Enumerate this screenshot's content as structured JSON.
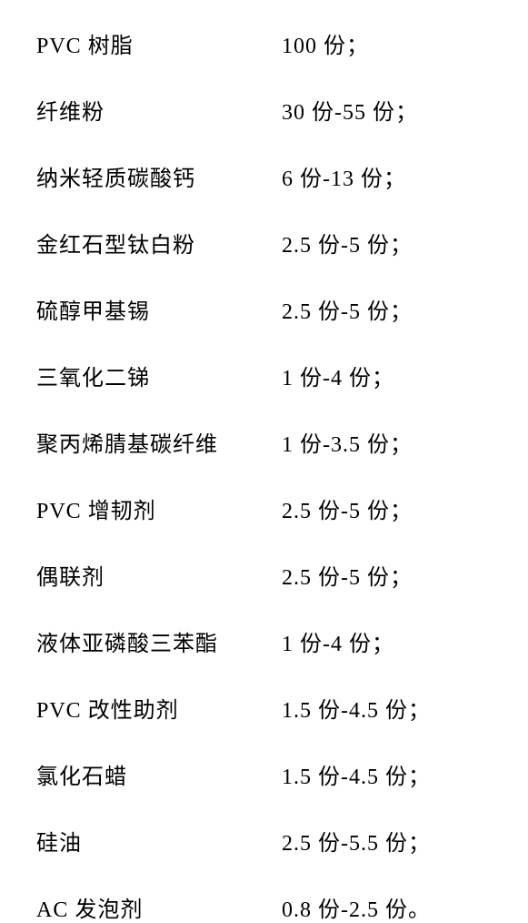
{
  "table": {
    "rows": [
      {
        "ingredient": "PVC 树脂",
        "amount": "100 份；"
      },
      {
        "ingredient": "纤维粉",
        "amount": "30 份-55 份；"
      },
      {
        "ingredient": "纳米轻质碳酸钙",
        "amount": "6 份-13 份；"
      },
      {
        "ingredient": "金红石型钛白粉",
        "amount": "2.5 份-5 份；"
      },
      {
        "ingredient": "硫醇甲基锡",
        "amount": "2.5 份-5 份；"
      },
      {
        "ingredient": "三氧化二锑",
        "amount": "1 份-4 份；"
      },
      {
        "ingredient": "聚丙烯腈基碳纤维",
        "amount": "1 份-3.5 份；"
      },
      {
        "ingredient": "PVC 增韧剂",
        "amount": "2.5 份-5 份；"
      },
      {
        "ingredient": "偶联剂",
        "amount": "2.5 份-5 份；"
      },
      {
        "ingredient": "液体亚磷酸三苯酯",
        "amount": "1 份-4 份；"
      },
      {
        "ingredient": "PVC 改性助剂",
        "amount": "1.5 份-4.5 份；"
      },
      {
        "ingredient": "氯化石蜡",
        "amount": "1.5 份-4.5 份；"
      },
      {
        "ingredient": "硅油",
        "amount": "2.5 份-5.5 份；"
      },
      {
        "ingredient": "AC 发泡剂",
        "amount": "0.8 份-2.5 份。"
      }
    ],
    "styling": {
      "font_family": "SimSun",
      "font_size": 24,
      "text_color": "#000000",
      "background_color": "#ffffff",
      "row_spacing": 38,
      "ingredient_column_width": 270
    }
  }
}
